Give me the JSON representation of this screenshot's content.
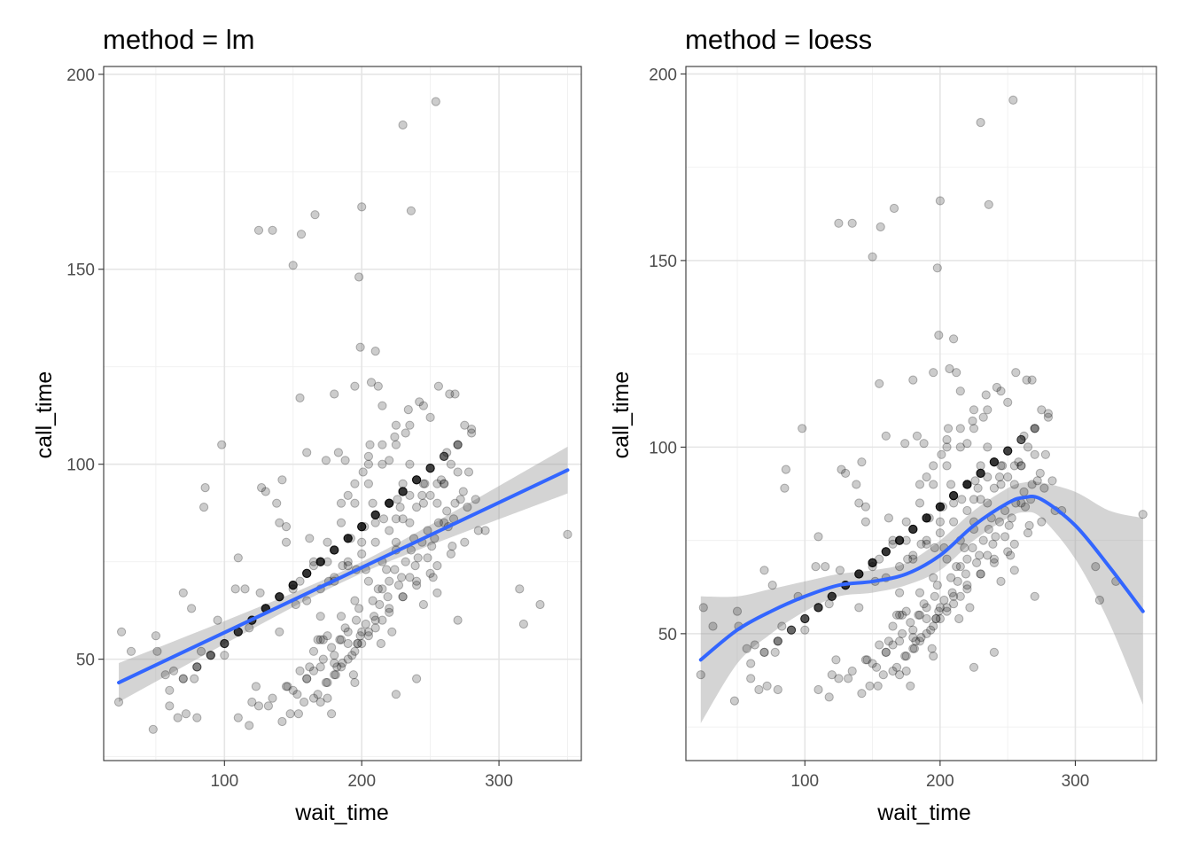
{
  "chart_data": [
    {
      "type": "scatter",
      "title": "method = lm",
      "xlabel": "wait_time",
      "ylabel": "call_time",
      "xlim": [
        12,
        360
      ],
      "ylim": [
        24,
        202
      ],
      "x_ticks": [
        100,
        200,
        300
      ],
      "y_ticks": [
        50,
        100,
        150,
        200
      ],
      "x_tick_labels": [
        "100",
        "200",
        "300"
      ],
      "y_tick_labels": [
        "50",
        "100",
        "150",
        "200"
      ],
      "grid": true,
      "fit": {
        "method": "lm",
        "x": [
          23,
          350
        ],
        "y": [
          44,
          98.5
        ],
        "band_upper": [
          49,
          104.5
        ],
        "band_lower": [
          39,
          92.5
        ],
        "color": "#3366FF"
      }
    },
    {
      "type": "scatter",
      "title": "method = loess",
      "xlabel": "wait_time",
      "ylabel": "call_time",
      "xlim": [
        12,
        360
      ],
      "ylim": [
        16,
        202
      ],
      "x_ticks": [
        100,
        200,
        300
      ],
      "y_ticks": [
        50,
        100,
        150,
        200
      ],
      "x_tick_labels": [
        "100",
        "200",
        "300"
      ],
      "y_tick_labels": [
        "50",
        "100",
        "150",
        "200"
      ],
      "grid": true,
      "fit": {
        "method": "loess",
        "x": [
          23,
          50,
          75,
          100,
          125,
          150,
          175,
          200,
          225,
          250,
          262,
          275,
          300,
          325,
          350
        ],
        "y": [
          43,
          51,
          56,
          60,
          63,
          64,
          66,
          71,
          79,
          85,
          86.5,
          86,
          79,
          68,
          56
        ],
        "band_upper": [
          60,
          60,
          62,
          64,
          66,
          67,
          69,
          75,
          83,
          89,
          90.5,
          90.5,
          88,
          83,
          81
        ],
        "band_lower": [
          26,
          42,
          50,
          56,
          60,
          61,
          63,
          67,
          75,
          81,
          82.5,
          81,
          70,
          53,
          31
        ],
        "color": "#3366FF"
      }
    }
  ],
  "points": {
    "wait_time": [
      23,
      25,
      32,
      48,
      50,
      51,
      57,
      60,
      63,
      66,
      70,
      72,
      76,
      78,
      80,
      83,
      85,
      86,
      95,
      98,
      100,
      108,
      110,
      115,
      118,
      120,
      123,
      125,
      126,
      127,
      130,
      135,
      138,
      140,
      142,
      145,
      148,
      150,
      152,
      153,
      155,
      156,
      160,
      162,
      165,
      166,
      168,
      170,
      172,
      174,
      175,
      176,
      178,
      180,
      182,
      183,
      185,
      186,
      188,
      190,
      192,
      194,
      195,
      196,
      197,
      198,
      199,
      200,
      201,
      202,
      203,
      205,
      206,
      207,
      208,
      210,
      212,
      214,
      215,
      216,
      218,
      220,
      222,
      224,
      225,
      226,
      228,
      230,
      232,
      234,
      235,
      236,
      238,
      240,
      242,
      244,
      246,
      248,
      250,
      252,
      254,
      256,
      258,
      260,
      262,
      264,
      266,
      268,
      270,
      272,
      275,
      278,
      280,
      285,
      290,
      315,
      318,
      330,
      350,
      140,
      150,
      165,
      170,
      180,
      190,
      195,
      205,
      215,
      225,
      235,
      245,
      255,
      165,
      175,
      185,
      195,
      205,
      215,
      225,
      170,
      180,
      190,
      200,
      210,
      220,
      230,
      240,
      150,
      160,
      170,
      180,
      190,
      200,
      210,
      220,
      230,
      240,
      250,
      175,
      185,
      195,
      205,
      215,
      225,
      235,
      245,
      255,
      260,
      145,
      155,
      165,
      175,
      185,
      195,
      205,
      215,
      225,
      235,
      245,
      180,
      190,
      200,
      210,
      220,
      230,
      160,
      170,
      180,
      190,
      200,
      210,
      220,
      230,
      240,
      250,
      260,
      270,
      130,
      140,
      150,
      160,
      170,
      180,
      190,
      200,
      210,
      220,
      230,
      240,
      250,
      260,
      270,
      110,
      120,
      130,
      140,
      150,
      160,
      170,
      180,
      190,
      200,
      210,
      220,
      230,
      240,
      250,
      100,
      110,
      120,
      130,
      140,
      150,
      160,
      170,
      180,
      190,
      200,
      210,
      220,
      230,
      240,
      250,
      260,
      270,
      280,
      90,
      100,
      110,
      120,
      130,
      140,
      150,
      160,
      170,
      180,
      190,
      200,
      210,
      220,
      230,
      240,
      250,
      260,
      270,
      80,
      90,
      100,
      110,
      120,
      130,
      140,
      150,
      160,
      170,
      180,
      190,
      200,
      210,
      220,
      230,
      240,
      250,
      260,
      70,
      80,
      90,
      100,
      110,
      120,
      130,
      140,
      150,
      160,
      170,
      180,
      190,
      200,
      210,
      220,
      230,
      240,
      250,
      60,
      70,
      80,
      90,
      100,
      110,
      120,
      130,
      140,
      150,
      160,
      170,
      180,
      190,
      200,
      210,
      220,
      230,
      240,
      255,
      265,
      275,
      125,
      145,
      155,
      165,
      175,
      185,
      195,
      205,
      215,
      225,
      235,
      245,
      255,
      265,
      110,
      135,
      160,
      172,
      184,
      196,
      208,
      220,
      232,
      244,
      256,
      268,
      118,
      132,
      146,
      162,
      178,
      188,
      198,
      212,
      224,
      236,
      248,
      262,
      274,
      142,
      158,
      174,
      186,
      197,
      203,
      213,
      227,
      239,
      251,
      263,
      277,
      154,
      168,
      181,
      193,
      199,
      209,
      219,
      229,
      241,
      253,
      267,
      283
    ],
    "call_time": [
      39,
      57,
      52,
      32,
      56,
      52,
      46,
      38,
      47,
      35,
      67,
      36,
      63,
      45,
      35,
      52,
      89,
      94,
      60,
      105,
      51,
      68,
      76,
      68,
      58,
      39,
      43,
      160,
      67,
      94,
      93,
      160,
      90,
      85,
      96,
      84,
      36,
      151,
      64,
      41,
      117,
      159,
      103,
      81,
      47,
      164,
      55,
      61,
      55,
      101,
      40,
      70,
      36,
      118,
      48,
      103,
      55,
      74,
      101,
      57,
      81,
      46,
      120,
      73,
      54,
      148,
      130,
      166,
      98,
      84,
      73,
      57,
      105,
      121,
      90,
      129,
      120,
      54,
      115,
      86,
      73,
      101,
      57,
      107,
      78,
      91,
      89,
      187,
      108,
      114,
      92,
      165,
      81,
      70,
      116,
      92,
      95,
      76,
      112,
      71,
      193,
      120,
      96,
      95,
      103,
      118,
      79,
      118,
      60,
      91,
      110,
      98,
      109,
      83,
      83,
      68,
      59,
      64,
      82,
      57,
      68,
      74,
      55,
      49,
      92,
      44,
      102,
      68,
      86,
      71,
      64,
      67,
      40,
      44,
      48,
      52,
      56,
      60,
      41,
      39,
      46,
      50,
      54,
      58,
      62,
      66,
      45,
      42,
      45,
      48,
      51,
      54,
      57,
      60,
      63,
      66,
      69,
      72,
      75,
      90,
      95,
      100,
      105,
      110,
      100,
      95,
      90,
      85,
      80,
      70,
      75,
      80,
      85,
      90,
      95,
      100,
      105,
      110,
      115,
      70,
      75,
      80,
      85,
      90,
      95,
      65,
      68,
      71,
      74,
      77,
      80,
      83,
      86,
      89,
      92,
      95,
      98,
      63,
      66,
      69,
      72,
      75,
      78,
      81,
      84,
      87,
      90,
      93,
      96,
      99,
      102,
      105,
      57,
      60,
      63,
      66,
      69,
      72,
      75,
      78,
      81,
      84,
      87,
      90,
      93,
      96,
      99,
      54,
      57,
      60,
      63,
      66,
      69,
      72,
      75,
      78,
      81,
      84,
      87,
      90,
      93,
      96,
      99,
      102,
      105,
      108,
      51,
      54,
      57,
      60,
      63,
      66,
      69,
      72,
      75,
      78,
      81,
      84,
      87,
      90,
      93,
      96,
      99,
      102,
      105,
      48,
      51,
      54,
      57,
      60,
      63,
      66,
      69,
      72,
      75,
      78,
      81,
      84,
      87,
      90,
      93,
      96,
      99,
      102,
      45,
      48,
      51,
      54,
      57,
      60,
      63,
      66,
      69,
      72,
      75,
      78,
      81,
      84,
      87,
      90,
      93,
      96,
      99,
      42,
      45,
      48,
      51,
      54,
      57,
      60,
      63,
      66,
      69,
      72,
      75,
      78,
      81,
      84,
      87,
      90,
      93,
      96,
      74,
      77,
      80,
      38,
      43,
      47,
      52,
      56,
      61,
      65,
      70,
      75,
      80,
      85,
      90,
      95,
      100,
      35,
      40,
      45,
      50,
      55,
      60,
      65,
      70,
      75,
      80,
      85,
      90,
      33,
      38,
      43,
      48,
      53,
      58,
      63,
      68,
      73,
      78,
      83,
      88,
      93,
      34,
      39,
      44,
      49,
      54,
      59,
      64,
      69,
      74,
      79,
      84,
      89,
      36,
      41,
      46,
      51,
      56,
      61,
      66,
      71,
      76,
      81,
      86,
      91
    ]
  }
}
